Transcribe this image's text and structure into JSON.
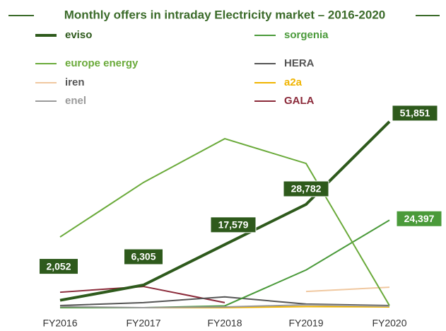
{
  "chart_data": {
    "type": "line",
    "title": "Monthly offers in intraday Electricity market – 2016-2020",
    "categories": [
      "FY2016",
      "FY2017",
      "FY2018",
      "FY2019",
      "FY2020"
    ],
    "ylim": [
      0,
      55000
    ],
    "series": [
      {
        "name": "eviso",
        "color": "#2e5a1c",
        "values": [
          2052,
          6305,
          17579,
          28782,
          51851
        ],
        "value_labels": [
          "2,052",
          "6,305",
          "17,579",
          "28,782",
          "51,851"
        ]
      },
      {
        "name": "europe energy",
        "color": "#6aaa3a",
        "values": [
          19700,
          34900,
          47100,
          40200,
          600
        ]
      },
      {
        "name": "iren",
        "color": "#f0c8a0",
        "values": [
          null,
          null,
          null,
          4500,
          5700
        ]
      },
      {
        "name": "enel",
        "color": "#9a9a9a",
        "values": [
          300,
          0,
          200,
          800,
          400
        ]
      },
      {
        "name": "sorgenia",
        "color": "#4a9a3a",
        "values": [
          0,
          0,
          500,
          10500,
          24397
        ],
        "value_labels": [
          null,
          null,
          null,
          null,
          "24,397"
        ]
      },
      {
        "name": "HERA",
        "color": "#555555",
        "values": [
          600,
          1400,
          3000,
          1000,
          600
        ]
      },
      {
        "name": "a2a",
        "color": "#f0b400",
        "values": [
          0,
          0,
          0,
          300,
          200
        ]
      },
      {
        "name": "GALA",
        "color": "#8b2a3a",
        "values": [
          4300,
          5900,
          1400,
          null,
          null
        ]
      }
    ]
  }
}
